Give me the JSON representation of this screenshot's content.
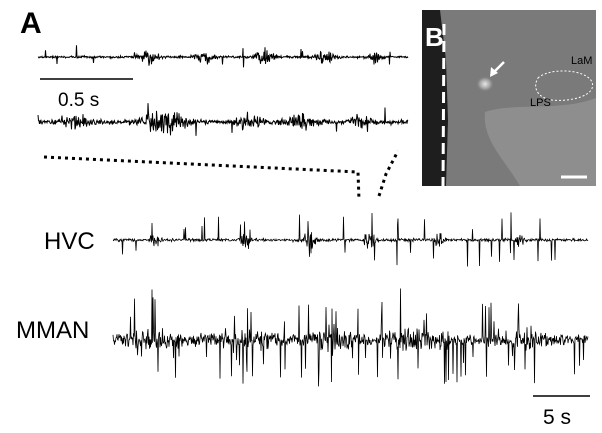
{
  "panel_a": {
    "letter": "A",
    "scale_bar_top": "0.5 s",
    "scale_bar_bottom": "5 s",
    "traces": [
      {
        "label": ""
      },
      {
        "label": ""
      },
      {
        "label": "HVC"
      },
      {
        "label": "MMAN"
      }
    ]
  },
  "panel_b": {
    "letter": "B",
    "labels": {
      "lam": "LaM",
      "lps": "LPS"
    },
    "colors": {
      "background": "#777777",
      "region": "#8c8c8c",
      "annotation": "#ffffff"
    }
  }
}
